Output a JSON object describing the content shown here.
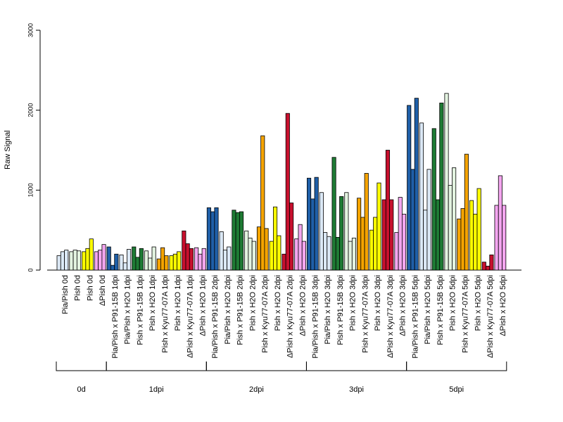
{
  "chart_data": {
    "type": "bar",
    "ylabel": "Raw Signal",
    "ylim": [
      0,
      3000
    ],
    "yticks": [
      "0",
      "1000",
      "2000",
      "3000"
    ],
    "grid": false,
    "legend": "none",
    "bars_per_category": 3,
    "categories": [
      {
        "label": "Pia/Pish 0d",
        "color": "#dce9f6",
        "values": [
          180,
          230,
          250
        ]
      },
      {
        "label": "Pish 0d",
        "color": "#e3f3e0",
        "values": [
          230,
          250,
          240
        ]
      },
      {
        "label": "Pish 0d",
        "color": "#ffff00",
        "values": [
          230,
          270,
          390
        ]
      },
      {
        "label": "ΔPish 0d",
        "color": "#f4a6f0",
        "values": [
          230,
          250,
          320
        ]
      },
      {
        "label": "Pia/Pish x P91-15B 1dpi",
        "color": "#1f5fa8",
        "values": [
          290,
          60,
          200
        ]
      },
      {
        "label": "Pia/Pish x H2O 1dpi",
        "color": "#dce9f6",
        "values": [
          190,
          90,
          260
        ]
      },
      {
        "label": "Pish x P91-15B 1dpi",
        "color": "#1e7b34",
        "values": [
          290,
          160,
          270
        ]
      },
      {
        "label": "Pish x H2O 1dpi",
        "color": "#e3f3e0",
        "values": [
          240,
          150,
          290
        ]
      },
      {
        "label": "Pish x Kyu77-07A 1dpi",
        "color": "#f5a400",
        "values": [
          140,
          280,
          180
        ]
      },
      {
        "label": "Pish x H2O 1dpi",
        "color": "#ffff00",
        "values": [
          180,
          200,
          230
        ]
      },
      {
        "label": "ΔPish x Kyu77-07A 1dpi",
        "color": "#c8102e",
        "values": [
          490,
          330,
          270
        ]
      },
      {
        "label": "ΔPish x H2O 1dpi",
        "color": "#f4a6f0",
        "values": [
          280,
          200,
          270
        ]
      },
      {
        "label": "Pia/Pish x P91-15B 2dpi",
        "color": "#1f5fa8",
        "values": [
          780,
          730,
          780
        ]
      },
      {
        "label": "Pia/Pish x H2O 2dpi",
        "color": "#dce9f6",
        "values": [
          480,
          250,
          290
        ]
      },
      {
        "label": "Pish x P91-15B 2dpi",
        "color": "#1e7b34",
        "values": [
          750,
          720,
          730
        ]
      },
      {
        "label": "Pish x H2O 2dpi",
        "color": "#e3f3e0",
        "values": [
          490,
          400,
          360
        ]
      },
      {
        "label": "Pish x Kyu77-07A 2dpi",
        "color": "#f5a400",
        "values": [
          540,
          1680,
          520
        ]
      },
      {
        "label": "Pish x H2O 2dpi",
        "color": "#ffff00",
        "values": [
          360,
          790,
          430
        ]
      },
      {
        "label": "ΔPish x Kyu77-07A 2dpi",
        "color": "#c8102e",
        "values": [
          200,
          1960,
          840
        ]
      },
      {
        "label": "ΔPish x H2O 2dpi",
        "color": "#f4a6f0",
        "values": [
          390,
          570,
          360
        ]
      },
      {
        "label": "Pia/Pish x P91-15B 3dpi",
        "color": "#1f5fa8",
        "values": [
          1150,
          890,
          1160
        ]
      },
      {
        "label": "Pia/Pish x H2O 3dpi",
        "color": "#dce9f6",
        "values": [
          970,
          470,
          420
        ]
      },
      {
        "label": "Pish x P91-15B 3dpi",
        "color": "#1e7b34",
        "values": [
          1410,
          410,
          920
        ]
      },
      {
        "label": "Pish x H2O 3dpi",
        "color": "#e3f3e0",
        "values": [
          970,
          360,
          400
        ]
      },
      {
        "label": "Pish x Kyu77-07A 3dpi",
        "color": "#f5a400",
        "values": [
          900,
          660,
          1210
        ]
      },
      {
        "label": "Pish x H2O 3dpi",
        "color": "#ffff00",
        "values": [
          500,
          660,
          1090
        ]
      },
      {
        "label": "ΔPish x Kyu77-07A 3dpi",
        "color": "#c8102e",
        "values": [
          880,
          1500,
          880
        ]
      },
      {
        "label": "ΔPish x H2O 3dpi",
        "color": "#f4a6f0",
        "values": [
          470,
          910,
          700
        ]
      },
      {
        "label": "Pia/Pish x P91-15B 5dpi",
        "color": "#1f5fa8",
        "values": [
          2060,
          1260,
          2150
        ]
      },
      {
        "label": "Pia/Pish x H2O 5dpi",
        "color": "#dce9f6",
        "values": [
          1840,
          750,
          1260
        ]
      },
      {
        "label": "Pish x P91-15B 5dpi",
        "color": "#1e7b34",
        "values": [
          1770,
          880,
          2090
        ]
      },
      {
        "label": "Pish x H2O 5dpi",
        "color": "#e3f3e0",
        "values": [
          2210,
          1060,
          1280
        ]
      },
      {
        "label": "Pish x Kyu77-07A 5dpi",
        "color": "#f5a400",
        "values": [
          640,
          770,
          1450
        ]
      },
      {
        "label": "Pish x H2O 5dpi",
        "color": "#ffff00",
        "values": [
          870,
          700,
          1020
        ]
      },
      {
        "label": "ΔPish x Kyu77-07A 5dpi",
        "color": "#c8102e",
        "values": [
          100,
          50,
          190
        ]
      },
      {
        "label": "ΔPish x H2O 5dpi",
        "color": "#f4a6f0",
        "values": [
          810,
          1180,
          810
        ]
      }
    ],
    "groups": [
      {
        "label": "0d",
        "from": 0,
        "to": 3
      },
      {
        "label": "1dpi",
        "from": 4,
        "to": 11
      },
      {
        "label": "2dpi",
        "from": 12,
        "to": 19
      },
      {
        "label": "3dpi",
        "from": 20,
        "to": 27
      },
      {
        "label": "5dpi",
        "from": 28,
        "to": 35
      }
    ]
  }
}
